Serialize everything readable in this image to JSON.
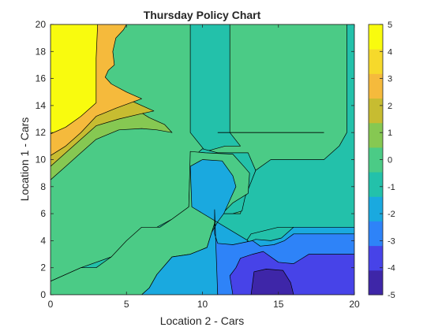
{
  "chart_data": {
    "type": "contour",
    "title": "Thursday Policy Chart",
    "xlabel": "Location 2 - Cars",
    "ylabel": "Location 1 - Cars",
    "xlim": [
      0,
      20
    ],
    "ylim": [
      0,
      20
    ],
    "xticks": [
      0,
      5,
      10,
      15,
      20
    ],
    "yticks": [
      0,
      2,
      4,
      6,
      8,
      10,
      12,
      14,
      16,
      18,
      20
    ],
    "colorbar": {
      "ticks": [
        5,
        4,
        3,
        2,
        1,
        0,
        -1,
        -2,
        -3,
        -4,
        -5
      ],
      "range": [
        -5,
        5
      ],
      "colors": [
        "#3E26A8",
        "#4743E8",
        "#2E83F8",
        "#1AA9DF",
        "#23C1AA",
        "#4BCB86",
        "#86C852",
        "#C7BC31",
        "#F5BA3C",
        "#F6D92B",
        "#F9FB0E"
      ]
    },
    "regions": [
      {
        "level": 1,
        "color": "#4BCB86",
        "points": [
          [
            0,
            0
          ],
          [
            20,
            0
          ],
          [
            20,
            20
          ],
          [
            0,
            20
          ]
        ]
      },
      {
        "level": 0,
        "color": "#23C1AA",
        "points": [
          [
            0,
            0
          ],
          [
            6,
            0
          ],
          [
            6.5,
            0.5
          ],
          [
            7,
            1.5
          ],
          [
            8,
            2.8
          ],
          [
            9.2,
            3
          ],
          [
            10.3,
            3.5
          ],
          [
            10.5,
            4.6
          ],
          [
            11,
            6
          ],
          [
            12.5,
            6
          ],
          [
            12.7,
            7
          ],
          [
            13.5,
            9.2
          ],
          [
            14.5,
            10
          ],
          [
            18,
            10
          ],
          [
            19,
            11
          ],
          [
            19.5,
            12
          ],
          [
            19.5,
            20
          ],
          [
            20,
            20
          ],
          [
            20,
            0
          ]
        ]
      },
      {
        "level": 0,
        "color": "#23C1AA",
        "points": [
          [
            8,
            0
          ],
          [
            8.5,
            1.1
          ],
          [
            10,
            2.4
          ],
          [
            11.3,
            3
          ],
          [
            12.6,
            3.5
          ],
          [
            13.2,
            4.5
          ],
          [
            15,
            5
          ],
          [
            20,
            5
          ],
          [
            20,
            0
          ]
        ]
      },
      {
        "level": 0,
        "color": "#23C1AA",
        "points": [
          [
            9.2,
            20
          ],
          [
            9.2,
            12
          ],
          [
            10.2,
            10.6
          ],
          [
            11.5,
            11
          ],
          [
            12.5,
            11
          ],
          [
            11.8,
            12
          ],
          [
            11.8,
            20
          ]
        ]
      },
      {
        "level": 0,
        "color": "#23C1AA",
        "points": [
          [
            0,
            0
          ],
          [
            0,
            1
          ],
          [
            2,
            2
          ],
          [
            4,
            2.8
          ],
          [
            5.5,
            4
          ],
          [
            7,
            5
          ],
          [
            8,
            5.6
          ],
          [
            9.1,
            6.5
          ],
          [
            9.2,
            10
          ],
          [
            10,
            10.8
          ],
          [
            11,
            10.5
          ],
          [
            13,
            10.5
          ],
          [
            13.5,
            9.2
          ],
          [
            12.8,
            7.2
          ],
          [
            12.6,
            6.2
          ],
          [
            12,
            6
          ],
          [
            11,
            6
          ],
          [
            10.6,
            4.6
          ],
          [
            10.3,
            3.5
          ],
          [
            9.2,
            3
          ],
          [
            8,
            2.8
          ],
          [
            7,
            1.5
          ],
          [
            6.5,
            0.5
          ],
          [
            6,
            0
          ]
        ]
      },
      {
        "level": 1,
        "color": "#4BCB86",
        "points": [
          [
            0,
            1
          ],
          [
            2,
            2
          ],
          [
            3,
            2
          ],
          [
            4,
            2.8
          ],
          [
            5,
            4
          ],
          [
            6,
            5
          ],
          [
            7.2,
            5
          ],
          [
            8,
            5.6
          ],
          [
            9.1,
            6.5
          ],
          [
            9.2,
            10.6
          ],
          [
            10.2,
            10.5
          ],
          [
            12,
            10.4
          ],
          [
            12.8,
            9.4
          ],
          [
            13.1,
            9
          ],
          [
            13,
            7.5
          ],
          [
            12,
            6.8
          ],
          [
            11.3,
            6
          ],
          [
            11,
            6
          ],
          [
            10.6,
            4.6
          ],
          [
            10.3,
            3.5
          ],
          [
            9.2,
            3
          ],
          [
            8,
            2.8
          ],
          [
            7,
            1.5
          ],
          [
            6.5,
            0.5
          ],
          [
            6,
            0
          ],
          [
            0,
            0
          ]
        ]
      },
      {
        "level": -1,
        "color": "#1AA9DF",
        "points": [
          [
            9.3,
            6.5
          ],
          [
            9.2,
            9.5
          ],
          [
            10,
            10
          ],
          [
            11.3,
            9.9
          ],
          [
            12,
            8.8
          ],
          [
            12.2,
            8
          ],
          [
            11.8,
            7
          ],
          [
            11.4,
            6
          ],
          [
            11,
            5.4
          ],
          [
            10.6,
            4.6
          ],
          [
            10.3,
            3.5
          ],
          [
            9.2,
            3
          ],
          [
            8,
            2.8
          ],
          [
            7,
            1.5
          ],
          [
            6.5,
            0.5
          ],
          [
            6,
            0
          ],
          [
            11,
            0
          ],
          [
            11,
            3
          ],
          [
            12.2,
            3.3
          ],
          [
            12.6,
            3.5
          ],
          [
            13,
            4
          ]
        ]
      },
      {
        "level": -1,
        "color": "#1AA9DF",
        "points": [
          [
            11,
            0
          ],
          [
            11,
            3.5
          ],
          [
            12,
            3.7
          ],
          [
            12.8,
            3.8
          ],
          [
            13.5,
            4.1
          ],
          [
            14.5,
            4
          ],
          [
            15.2,
            4.2
          ],
          [
            16,
            5
          ],
          [
            20,
            5
          ],
          [
            20,
            0
          ]
        ]
      },
      {
        "level": -2,
        "color": "#2E83F8",
        "points": [
          [
            10.8,
            6.3
          ],
          [
            10.8,
            4.5
          ],
          [
            11,
            3.8
          ],
          [
            12,
            3.7
          ],
          [
            13.3,
            4
          ],
          [
            13.8,
            3.6
          ],
          [
            14.7,
            3.7
          ],
          [
            15.4,
            4
          ],
          [
            16,
            4.5
          ],
          [
            20,
            4.5
          ],
          [
            20,
            0
          ],
          [
            11,
            0
          ]
        ]
      },
      {
        "level": -3,
        "color": "#4743E8",
        "points": [
          [
            11.8,
            1.4
          ],
          [
            12.2,
            2
          ],
          [
            12.5,
            2.7
          ],
          [
            13.3,
            3
          ],
          [
            14,
            3.2
          ],
          [
            15,
            2.4
          ],
          [
            16,
            2.3
          ],
          [
            17,
            3
          ],
          [
            20,
            3
          ],
          [
            20,
            0
          ],
          [
            12,
            0
          ]
        ]
      },
      {
        "level": -4,
        "color": "#3E26A8",
        "points": [
          [
            13.2,
            0
          ],
          [
            13.4,
            1.7
          ],
          [
            14.2,
            1.9
          ],
          [
            15.3,
            1.8
          ],
          [
            15.8,
            0.9
          ],
          [
            16,
            0
          ]
        ]
      },
      {
        "level": 2,
        "color": "#86C852",
        "points": [
          [
            0,
            8.5
          ],
          [
            1,
            9.5
          ],
          [
            2,
            10.5
          ],
          [
            3,
            11.5
          ],
          [
            4.5,
            12.2
          ],
          [
            6,
            12.3
          ],
          [
            7,
            12.2
          ],
          [
            8,
            12
          ],
          [
            7.5,
            12.6
          ],
          [
            6.5,
            13.1
          ],
          [
            5.5,
            13.8
          ],
          [
            4.5,
            14.5
          ],
          [
            3.5,
            15.2
          ],
          [
            3,
            16
          ],
          [
            3.2,
            16.8
          ],
          [
            3.5,
            17.5
          ],
          [
            3.7,
            18.5
          ],
          [
            4,
            20
          ],
          [
            0,
            20
          ]
        ]
      },
      {
        "level": 3,
        "color": "#C7BC31",
        "points": [
          [
            0,
            9.5
          ],
          [
            1,
            10.5
          ],
          [
            2,
            11.5
          ],
          [
            3,
            12.5
          ],
          [
            4.5,
            13
          ],
          [
            6,
            13.4
          ],
          [
            6.8,
            13.6
          ],
          [
            6,
            14
          ],
          [
            5,
            14.5
          ],
          [
            4.3,
            15.1
          ],
          [
            3.6,
            15.6
          ],
          [
            3.2,
            16.1
          ],
          [
            3.4,
            16.8
          ],
          [
            3.9,
            17.5
          ],
          [
            4,
            18.5
          ],
          [
            4.2,
            19.5
          ],
          [
            4.6,
            20
          ],
          [
            0,
            20
          ]
        ]
      },
      {
        "level": 4,
        "color": "#F5BA3C",
        "points": [
          [
            0,
            10.3
          ],
          [
            1,
            11
          ],
          [
            2,
            12
          ],
          [
            3,
            13.2
          ],
          [
            4.3,
            13.8
          ],
          [
            5.5,
            14.3
          ],
          [
            6,
            14.5
          ],
          [
            5,
            15
          ],
          [
            4,
            15.6
          ],
          [
            3.6,
            16.1
          ],
          [
            3.8,
            16.6
          ],
          [
            4.2,
            17
          ],
          [
            4.1,
            18
          ],
          [
            4.3,
            19
          ],
          [
            4.8,
            19.6
          ],
          [
            5,
            20
          ],
          [
            0,
            20
          ]
        ]
      },
      {
        "level": 5,
        "color": "#F9FB0E",
        "points": [
          [
            0,
            11.9
          ],
          [
            1,
            12.4
          ],
          [
            2,
            13.2
          ],
          [
            3,
            14.2
          ],
          [
            3,
            15.5
          ],
          [
            3,
            17.5
          ],
          [
            3.1,
            20
          ],
          [
            0,
            20
          ]
        ]
      }
    ],
    "lines": [
      {
        "points": [
          [
            11,
            12
          ],
          [
            18,
            12
          ]
        ]
      }
    ]
  }
}
